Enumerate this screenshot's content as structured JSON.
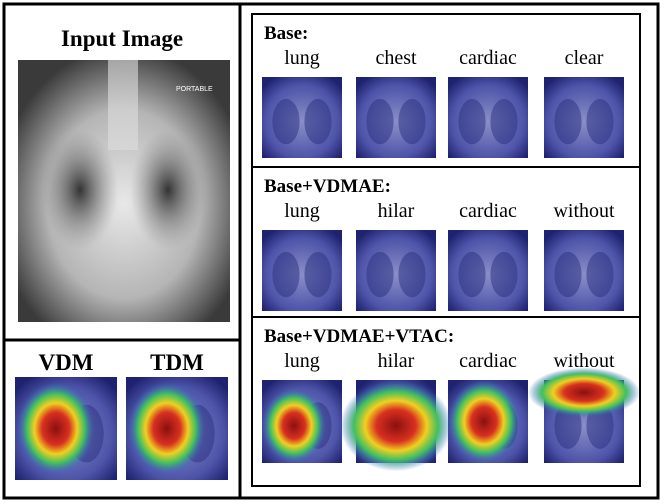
{
  "input_panel": {
    "title": "Input Image",
    "image_text": "PORTABLE"
  },
  "map_panel": {
    "labels": [
      "VDM",
      "TDM"
    ]
  },
  "panels": [
    {
      "title": "Base:",
      "words": [
        "lung",
        "chest",
        "cardiac",
        "clear"
      ]
    },
    {
      "title": "Base+VDMAE:",
      "words": [
        "lung",
        "hilar",
        "cardiac",
        "without"
      ]
    },
    {
      "title": "Base+VDMAE+VTAC:",
      "words": [
        "lung",
        "hilar",
        "cardiac",
        "without"
      ]
    }
  ]
}
